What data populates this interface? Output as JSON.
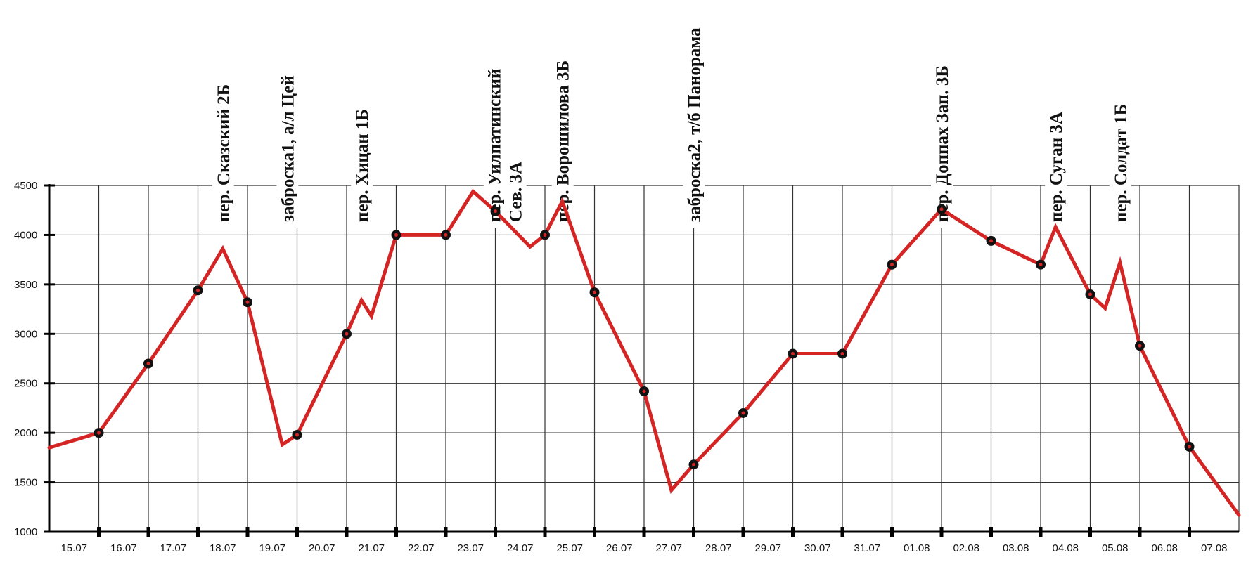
{
  "chart_data": {
    "type": "line",
    "title": "",
    "xlabel": "",
    "ylabel": "",
    "ylim": [
      1000,
      4500
    ],
    "yticks": [
      1000,
      1500,
      2000,
      2500,
      3000,
      3500,
      4000,
      4500
    ],
    "grid": true,
    "line_color": "#d42424",
    "marker_color": "#111111",
    "categories": [
      "15.07",
      "16.07",
      "17.07",
      "18.07",
      "19.07",
      "20.07",
      "21.07",
      "22.07",
      "23.07",
      "24.07",
      "25.07",
      "26.07",
      "27.07",
      "28.07",
      "29.07",
      "30.07",
      "31.07",
      "01.08",
      "02.08",
      "03.08",
      "04.08",
      "05.08",
      "06.08",
      "07.08"
    ],
    "series": [
      {
        "points": [
          {
            "x": 0.0,
            "y": 1850
          },
          {
            "x": 1.0,
            "y": 2000,
            "marker": true
          },
          {
            "x": 2.0,
            "y": 2700,
            "marker": true
          },
          {
            "x": 3.0,
            "y": 3440,
            "marker": true
          },
          {
            "x": 3.5,
            "y": 3860
          },
          {
            "x": 4.0,
            "y": 3320,
            "marker": true
          },
          {
            "x": 4.7,
            "y": 1880
          },
          {
            "x": 5.0,
            "y": 1980,
            "marker": true
          },
          {
            "x": 6.0,
            "y": 3000,
            "marker": true
          },
          {
            "x": 6.3,
            "y": 3340
          },
          {
            "x": 6.5,
            "y": 3180
          },
          {
            "x": 7.0,
            "y": 4000,
            "marker": true
          },
          {
            "x": 8.0,
            "y": 4000,
            "marker": true
          },
          {
            "x": 8.55,
            "y": 4440
          },
          {
            "x": 9.0,
            "y": 4240,
            "marker": true
          },
          {
            "x": 9.7,
            "y": 3880
          },
          {
            "x": 10.0,
            "y": 4000,
            "marker": true
          },
          {
            "x": 10.35,
            "y": 4340
          },
          {
            "x": 11.0,
            "y": 3420,
            "marker": true
          },
          {
            "x": 12.0,
            "y": 2420,
            "marker": true
          },
          {
            "x": 12.55,
            "y": 1420
          },
          {
            "x": 13.0,
            "y": 1680,
            "marker": true
          },
          {
            "x": 14.0,
            "y": 2200,
            "marker": true
          },
          {
            "x": 15.0,
            "y": 2800,
            "marker": true
          },
          {
            "x": 16.0,
            "y": 2800,
            "marker": true
          },
          {
            "x": 17.0,
            "y": 3700,
            "marker": true
          },
          {
            "x": 18.0,
            "y": 4260,
            "marker": true
          },
          {
            "x": 19.0,
            "y": 3940,
            "marker": true
          },
          {
            "x": 20.0,
            "y": 3700,
            "marker": true
          },
          {
            "x": 20.3,
            "y": 4080
          },
          {
            "x": 21.0,
            "y": 3400,
            "marker": true
          },
          {
            "x": 21.3,
            "y": 3260
          },
          {
            "x": 21.6,
            "y": 3720
          },
          {
            "x": 22.0,
            "y": 2880,
            "marker": true
          },
          {
            "x": 23.0,
            "y": 1860,
            "marker": true
          },
          {
            "x": 24.0,
            "y": 1170
          }
        ]
      }
    ],
    "annotations": [
      {
        "x": 3.5,
        "lines": [
          "пер. Сказский 2Б"
        ]
      },
      {
        "x": 4.8,
        "lines": [
          "заброска1, а/л Цей"
        ]
      },
      {
        "x": 6.3,
        "lines": [
          "пер. Хицан 1Б"
        ]
      },
      {
        "x": 9.4,
        "lines": [
          "пер. Уилпатинский",
          "Сев.  3А"
        ]
      },
      {
        "x": 10.35,
        "lines": [
          "пер. Ворошилова 3Б"
        ]
      },
      {
        "x": 13.0,
        "lines": [
          "заброска2, т/б Панорама"
        ]
      },
      {
        "x": 18.0,
        "lines": [
          "пер. Доппах Зап. 3Б"
        ]
      },
      {
        "x": 20.3,
        "lines": [
          "пер. Суган 3А"
        ]
      },
      {
        "x": 21.6,
        "lines": [
          "пер. Солдат 1Б"
        ]
      }
    ]
  }
}
